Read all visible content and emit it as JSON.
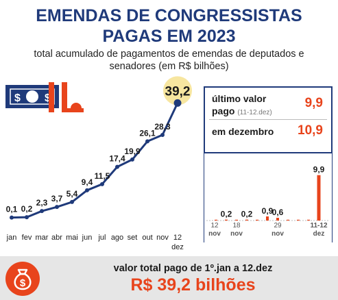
{
  "header": {
    "title_line1": "EMENDAS DE CONGRESSISTAS",
    "title_line2": "PAGAS EM 2023",
    "subtitle_line1": "total acumulado de pagamentos de emendas de deputados e",
    "subtitle_line2": "senadores (em R$ bilhões)"
  },
  "info_box": {
    "last_label": "último valor",
    "last_label2": "pago",
    "last_period": "(11-12.dez)",
    "last_value": "9,9",
    "dec_label": "em dezembro",
    "dec_value": "10,9"
  },
  "footer": {
    "caption": "valor total pago de 1º.jan a 12.dez",
    "total": "R$ 39,2 bilhões"
  },
  "colors": {
    "title": "#1f3a7a",
    "line": "#1f3a7a",
    "accent": "#e8441c",
    "highlight": "#f7e6a0",
    "footer_bg": "#e6e6e6"
  },
  "icons": [
    "banknote-icon",
    "congress-building-icon",
    "money-bag-icon"
  ],
  "chart_data": [
    {
      "type": "line",
      "title": "EMENDAS DE CONGRESSISTAS PAGAS EM 2023",
      "subtitle": "total acumulado de pagamentos de emendas de deputados e senadores (em R$ bilhões)",
      "categories": [
        "jan",
        "fev",
        "mar",
        "abr",
        "mai",
        "jun",
        "jul",
        "ago",
        "set",
        "out",
        "nov",
        "12 dez"
      ],
      "values": [
        0.1,
        0.2,
        2.3,
        3.7,
        5.4,
        9.4,
        11.5,
        17.4,
        19.9,
        26.1,
        28.3,
        39.2
      ],
      "labels": [
        "0,1",
        "0,2",
        "2,3",
        "3,7",
        "5,4",
        "9,4",
        "11,5",
        "17,4",
        "19,9",
        "26,1",
        "28,3",
        "39,2"
      ],
      "ylim": [
        0,
        40
      ],
      "grid": false
    },
    {
      "type": "bar",
      "title": "",
      "tick_labels": [
        "12 nov",
        "18 nov",
        "29 nov",
        "11-12 dez"
      ],
      "values": [
        0.02,
        0.2,
        0.05,
        0.2,
        0.05,
        0.9,
        0.6,
        0.05,
        0.02,
        0.05,
        9.9
      ],
      "labels": [
        "",
        "0,2",
        "",
        "0,2",
        "",
        "0,9",
        "0,6",
        "",
        "",
        "",
        "9,9"
      ],
      "ylim": [
        0,
        10
      ],
      "grid": false
    }
  ]
}
